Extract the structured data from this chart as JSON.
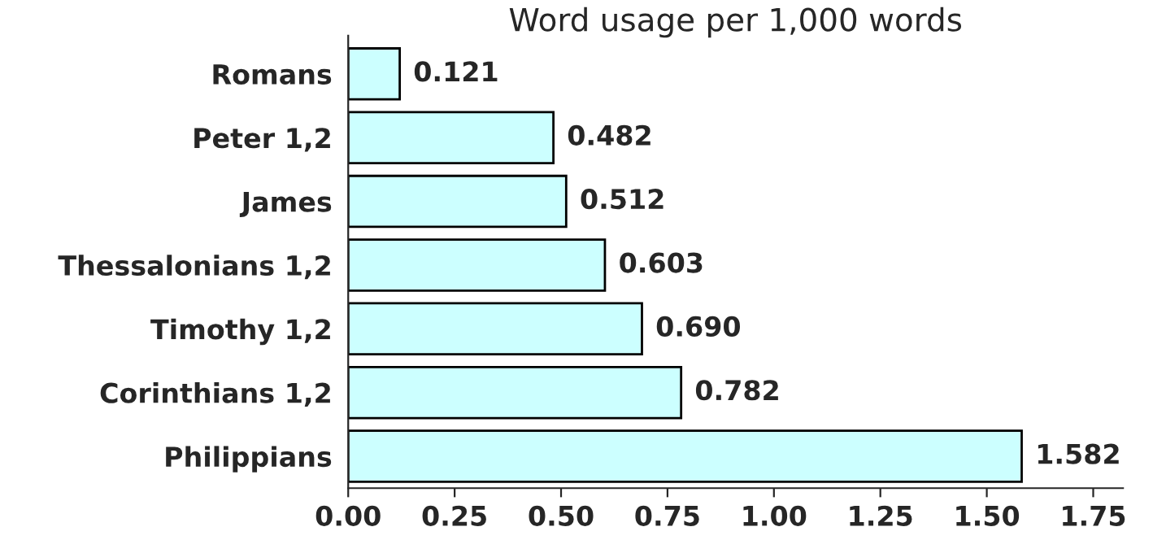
{
  "chart_data": {
    "type": "bar",
    "orientation": "horizontal",
    "title": "Word usage per 1,000 words",
    "categories": [
      "Romans",
      "Peter 1,2",
      "James",
      "Thessalonians 1,2",
      "Timothy 1,2",
      "Corinthians 1,2",
      "Philippians"
    ],
    "values": [
      0.121,
      0.482,
      0.512,
      0.603,
      0.69,
      0.782,
      1.582
    ],
    "value_labels": [
      "0.121",
      "0.482",
      "0.512",
      "0.603",
      "0.690",
      "0.782",
      "1.582"
    ],
    "color": "#ccffff",
    "xlim": [
      0,
      1.82
    ],
    "xticks": [
      {
        "value": 0,
        "label": "0.00"
      },
      {
        "value": 0.25,
        "label": "0.25"
      },
      {
        "value": 0.5,
        "label": "0.50"
      },
      {
        "value": 0.75,
        "label": "0.75"
      },
      {
        "value": 1,
        "label": "1.00"
      },
      {
        "value": 1.25,
        "label": "1.25"
      },
      {
        "value": 1.5,
        "label": "1.50"
      },
      {
        "value": 1.75,
        "label": "1.75"
      }
    ],
    "grid": false,
    "legend": false
  }
}
